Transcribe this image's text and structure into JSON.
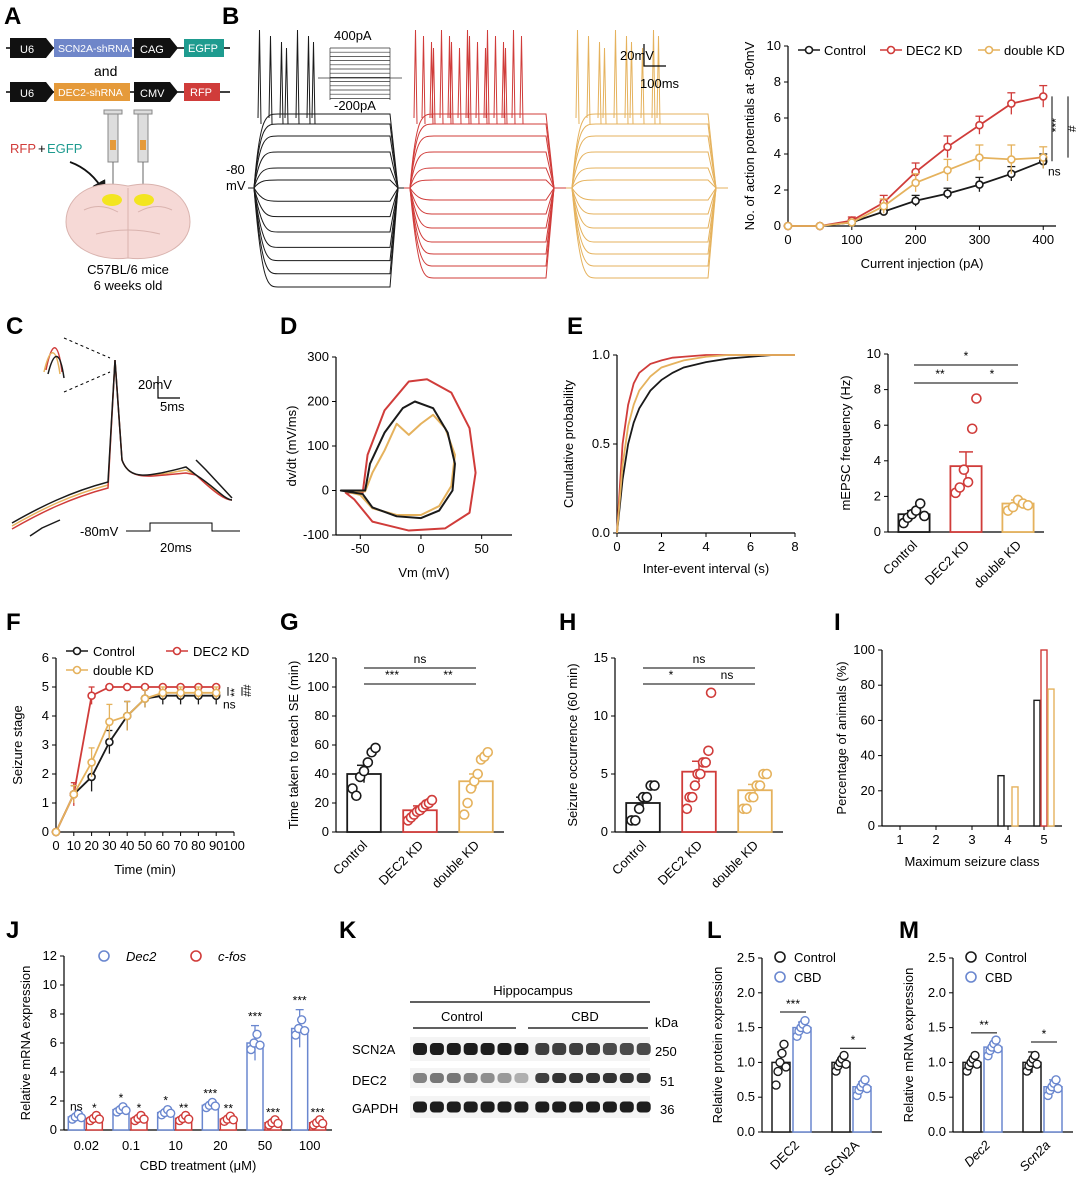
{
  "colors": {
    "control": "#1a1a1a",
    "dec2": "#d03c3a",
    "double": "#e5b25d",
    "cbd": "#6a87cf",
    "cfos": "#d03c3a",
    "yellow": "#f2e600",
    "brain": "#f6d9d6"
  },
  "panel_labels": [
    "A",
    "B",
    "C",
    "D",
    "E",
    "F",
    "G",
    "H",
    "I",
    "J",
    "K",
    "L",
    "M"
  ],
  "panelA": {
    "vec1": {
      "promoter": "U6",
      "shrna": "SCN2A-shRNA",
      "promoter2": "CAG",
      "reporter": "EGFP"
    },
    "and_text": "and",
    "vec2": {
      "promoter": "U6",
      "shrna": "DEC2-shRNA",
      "promoter2": "CMV",
      "reporter": "RFP"
    },
    "inject_label_rfp": "RFP",
    "inject_label_plus": "+",
    "inject_label_egfp": "EGFP",
    "mice_line1": "C57BL/6 mice",
    "mice_line2": "6 weeks old"
  },
  "panelB": {
    "stim_top": "400pA",
    "stim_bottom": "-200pA",
    "vm_label": "-80",
    "vm_unit": "mV",
    "scale_v": "20mV",
    "scale_t": "100ms"
  },
  "panelC": {
    "scale_v": "20mV",
    "scale_t": "5ms",
    "vm": "-80mV",
    "dur": "20ms"
  },
  "chart_data": [
    {
      "id": "B",
      "type": "line",
      "title": "",
      "xlabel": "Current injection (pA)",
      "ylabel": "No. of action potentials at -80mV",
      "xlim": [
        0,
        420
      ],
      "ylim": [
        0,
        10
      ],
      "xticks": [
        0,
        100,
        200,
        300,
        400
      ],
      "yticks": [
        0,
        2,
        4,
        6,
        8,
        10
      ],
      "x": [
        0,
        50,
        100,
        150,
        200,
        250,
        300,
        350,
        400
      ],
      "series": [
        {
          "name": "Control",
          "values": [
            0,
            0,
            0.2,
            0.8,
            1.4,
            1.8,
            2.3,
            2.9,
            3.6
          ],
          "err": [
            0,
            0,
            0.1,
            0.2,
            0.3,
            0.3,
            0.4,
            0.4,
            0.4
          ]
        },
        {
          "name": "DEC2 KD",
          "values": [
            0,
            0,
            0.3,
            1.3,
            3.0,
            4.4,
            5.6,
            6.8,
            7.2
          ],
          "err": [
            0,
            0,
            0.2,
            0.4,
            0.5,
            0.6,
            0.5,
            0.6,
            0.6
          ]
        },
        {
          "name": "double KD",
          "values": [
            0,
            0,
            0.2,
            1.1,
            2.4,
            3.1,
            3.8,
            3.7,
            3.8
          ],
          "err": [
            0,
            0,
            0.1,
            0.4,
            0.5,
            0.6,
            0.7,
            0.8,
            0.6
          ]
        }
      ],
      "sig": [
        "***",
        "#",
        "ns"
      ]
    },
    {
      "id": "D",
      "type": "line",
      "xlabel": "Vm (mV)",
      "ylabel": "dv/dt (mV/ms)",
      "xlim": [
        -70,
        75
      ],
      "ylim": [
        -100,
        300
      ],
      "xticks": [
        -50,
        0,
        50
      ],
      "yticks": [
        -100,
        0,
        100,
        200,
        300
      ]
    },
    {
      "id": "E1",
      "type": "line",
      "xlabel": "Inter-event interval (s)",
      "ylabel": "Cumulative probability",
      "xlim": [
        0,
        8
      ],
      "ylim": [
        0,
        1
      ],
      "xticks": [
        0,
        2,
        4,
        6,
        8
      ],
      "yticks": [
        0.0,
        0.5,
        1.0
      ],
      "x": [
        0,
        0.25,
        0.5,
        0.75,
        1,
        1.5,
        2,
        2.5,
        3,
        4,
        5,
        6,
        7
      ],
      "series": [
        {
          "name": "Control",
          "values": [
            0,
            0.3,
            0.5,
            0.62,
            0.7,
            0.8,
            0.86,
            0.9,
            0.93,
            0.96,
            0.98,
            0.99,
            1
          ]
        },
        {
          "name": "DEC2 KD",
          "values": [
            0,
            0.5,
            0.72,
            0.84,
            0.9,
            0.95,
            0.97,
            0.985,
            0.99,
            1,
            1,
            1,
            1
          ]
        },
        {
          "name": "double KD",
          "values": [
            0,
            0.38,
            0.6,
            0.72,
            0.8,
            0.88,
            0.93,
            0.95,
            0.97,
            0.99,
            1,
            1,
            1
          ]
        }
      ]
    },
    {
      "id": "E2",
      "type": "bar",
      "ylabel": "mEPSC frequency (Hz)",
      "ylim": [
        0,
        10
      ],
      "yticks": [
        0,
        2,
        4,
        6,
        8,
        10
      ],
      "categories": [
        "Control",
        "DEC2 KD",
        "double KD"
      ],
      "values": [
        1.0,
        3.7,
        1.6
      ],
      "err": [
        0.2,
        0.8,
        0.2
      ],
      "points": [
        [
          0.5,
          0.8,
          1.0,
          1.2,
          1.6,
          0.9
        ],
        [
          2.2,
          2.5,
          3.5,
          2.8,
          5.8,
          7.5
        ],
        [
          1.2,
          1.4,
          1.8,
          1.6,
          1.5
        ]
      ],
      "sig": [
        [
          "Control",
          "DEC2 KD",
          "**"
        ],
        [
          "DEC2 KD",
          "double KD",
          "*"
        ],
        [
          "Control",
          "double KD",
          "*"
        ]
      ]
    },
    {
      "id": "F",
      "type": "line",
      "xlabel": "Time (min)",
      "ylabel": "Seizure stage",
      "xlim": [
        0,
        100
      ],
      "ylim": [
        0,
        6
      ],
      "xticks": [
        0,
        10,
        20,
        30,
        40,
        50,
        60,
        70,
        80,
        90,
        100
      ],
      "yticks": [
        0,
        1,
        2,
        3,
        4,
        5,
        6
      ],
      "x": [
        0,
        10,
        20,
        30,
        40,
        50,
        60,
        70,
        80,
        90
      ],
      "series": [
        {
          "name": "Control",
          "values": [
            0,
            1.3,
            1.9,
            3.1,
            4.0,
            4.6,
            4.7,
            4.7,
            4.7,
            4.7
          ],
          "err": [
            0,
            0.3,
            0.5,
            0.4,
            0.5,
            0.3,
            0.3,
            0.3,
            0.3,
            0.3
          ]
        },
        {
          "name": "DEC2 KD",
          "values": [
            0,
            1.3,
            4.7,
            5,
            5,
            5,
            5,
            5,
            5,
            5
          ],
          "err": [
            0,
            0.4,
            0.3,
            0,
            0,
            0,
            0,
            0,
            0,
            0
          ]
        },
        {
          "name": "double KD",
          "values": [
            0,
            1.3,
            2.4,
            3.8,
            4.0,
            4.6,
            4.8,
            4.8,
            4.8,
            4.8
          ],
          "err": [
            0,
            0.3,
            0.5,
            0.6,
            0.5,
            0.3,
            0.2,
            0.2,
            0.2,
            0.2
          ]
        }
      ],
      "sig": [
        "**",
        "##",
        "ns"
      ]
    },
    {
      "id": "G",
      "type": "bar",
      "ylabel": "Time taken to reach SE (min)",
      "ylim": [
        0,
        120
      ],
      "yticks": [
        0,
        20,
        40,
        60,
        80,
        100,
        120
      ],
      "categories": [
        "Control",
        "DEC2 KD",
        "double KD"
      ],
      "values": [
        40,
        15,
        35
      ],
      "err": [
        6,
        3,
        5
      ],
      "points": [
        [
          30,
          25,
          38,
          42,
          48,
          55,
          58
        ],
        [
          8,
          10,
          12,
          14,
          15,
          17,
          19,
          20,
          22
        ],
        [
          12,
          20,
          30,
          35,
          40,
          50,
          52,
          55
        ]
      ],
      "sig": [
        [
          "Control",
          "double KD",
          "ns"
        ],
        [
          "Control",
          "DEC2 KD",
          "***"
        ],
        [
          "DEC2 KD",
          "double KD",
          "**"
        ]
      ]
    },
    {
      "id": "H",
      "type": "bar",
      "ylabel": "Seizure occurrence (60 min)",
      "ylim": [
        0,
        15
      ],
      "yticks": [
        0,
        5,
        10,
        15
      ],
      "categories": [
        "Control",
        "DEC2 KD",
        "double KD"
      ],
      "values": [
        2.5,
        5.2,
        3.6
      ],
      "err": [
        0.5,
        0.9,
        0.5
      ],
      "points": [
        [
          1,
          1,
          2,
          3,
          3,
          4,
          4
        ],
        [
          2,
          3,
          3,
          4,
          5,
          5,
          6,
          6,
          7,
          12
        ],
        [
          2,
          2,
          3,
          3,
          4,
          4,
          5,
          5
        ]
      ],
      "sig": [
        [
          "Control",
          "double KD",
          "ns"
        ],
        [
          "Control",
          "DEC2 KD",
          "*"
        ],
        [
          "DEC2 KD",
          "double KD",
          "ns"
        ]
      ]
    },
    {
      "id": "I",
      "type": "bar",
      "xlabel": "Maximum seizure class",
      "ylabel": "Percentage of animals (%)",
      "ylim": [
        0,
        100
      ],
      "yticks": [
        0,
        20,
        40,
        60,
        80,
        100
      ],
      "categories": [
        "1",
        "2",
        "3",
        "4",
        "5"
      ],
      "series": [
        {
          "name": "Control",
          "values": [
            0,
            0,
            0,
            28.6,
            71.4
          ]
        },
        {
          "name": "DEC2 KD",
          "values": [
            0,
            0,
            0,
            0,
            100
          ]
        },
        {
          "name": "double KD",
          "values": [
            0,
            0,
            0,
            22.2,
            77.8
          ]
        }
      ]
    },
    {
      "id": "J",
      "type": "bar",
      "xlabel": "CBD treatment (μM)",
      "ylabel": "Relative mRNA expression",
      "ylim": [
        0,
        12
      ],
      "yticks": [
        0,
        2,
        4,
        6,
        8,
        10,
        12
      ],
      "categories": [
        "0.02",
        "0.1",
        "10",
        "20",
        "50",
        "100"
      ],
      "series": [
        {
          "name": "Dec2",
          "values": [
            0.9,
            1.4,
            1.2,
            1.7,
            6.0,
            7.0
          ],
          "err": [
            0.1,
            0.2,
            0.2,
            0.2,
            1.2,
            1.3
          ],
          "sig": [
            "ns",
            "*",
            "*",
            "***",
            "***",
            "***"
          ]
        },
        {
          "name": "c-fos",
          "values": [
            0.8,
            0.8,
            0.8,
            0.75,
            0.5,
            0.5
          ],
          "err": [
            0.1,
            0.1,
            0.1,
            0.1,
            0.1,
            0.1
          ],
          "sig": [
            "*",
            "*",
            "**",
            "**",
            "***",
            "***"
          ]
        }
      ]
    },
    {
      "id": "L",
      "type": "bar",
      "ylabel": "Relative protein expression",
      "ylim": [
        0,
        2.5
      ],
      "yticks": [
        0.0,
        0.5,
        1.0,
        1.5,
        2.0,
        2.5
      ],
      "categories": [
        "DEC2",
        "SCN2A"
      ],
      "series": [
        {
          "name": "Control",
          "values": [
            1.0,
            1.0
          ],
          "err": [
            0.15,
            0.06
          ]
        },
        {
          "name": "CBD",
          "values": [
            1.5,
            0.65
          ],
          "err": [
            0.08,
            0.07
          ]
        }
      ],
      "sig": [
        "***",
        "*"
      ]
    },
    {
      "id": "M",
      "type": "bar",
      "ylabel": "Relative mRNA expression",
      "ylim": [
        0,
        2.5
      ],
      "yticks": [
        0.0,
        0.5,
        1.0,
        1.5,
        2.0,
        2.5
      ],
      "categories": [
        "Dec2",
        "Scn2a"
      ],
      "series": [
        {
          "name": "Control",
          "values": [
            1.0,
            1.0
          ],
          "err": [
            0.05,
            0.15
          ]
        },
        {
          "name": "CBD",
          "values": [
            1.22,
            0.65
          ],
          "err": [
            0.06,
            0.1
          ]
        }
      ],
      "sig": [
        "**",
        "*"
      ]
    }
  ],
  "legendB": [
    "Control",
    "DEC2 KD",
    "double KD"
  ],
  "legendF": [
    "Control",
    "DEC2 KD",
    "double KD"
  ],
  "legendJ": [
    "Dec2",
    "c-fos"
  ],
  "legendLM": [
    "Control",
    "CBD"
  ],
  "blot": {
    "region": "Hippocampus",
    "groups": [
      "Control",
      "CBD"
    ],
    "unit": "kDa",
    "rows": [
      {
        "name": "SCN2A",
        "kda": "250"
      },
      {
        "name": "DEC2",
        "kda": "51"
      },
      {
        "name": "GAPDH",
        "kda": "36"
      }
    ]
  }
}
